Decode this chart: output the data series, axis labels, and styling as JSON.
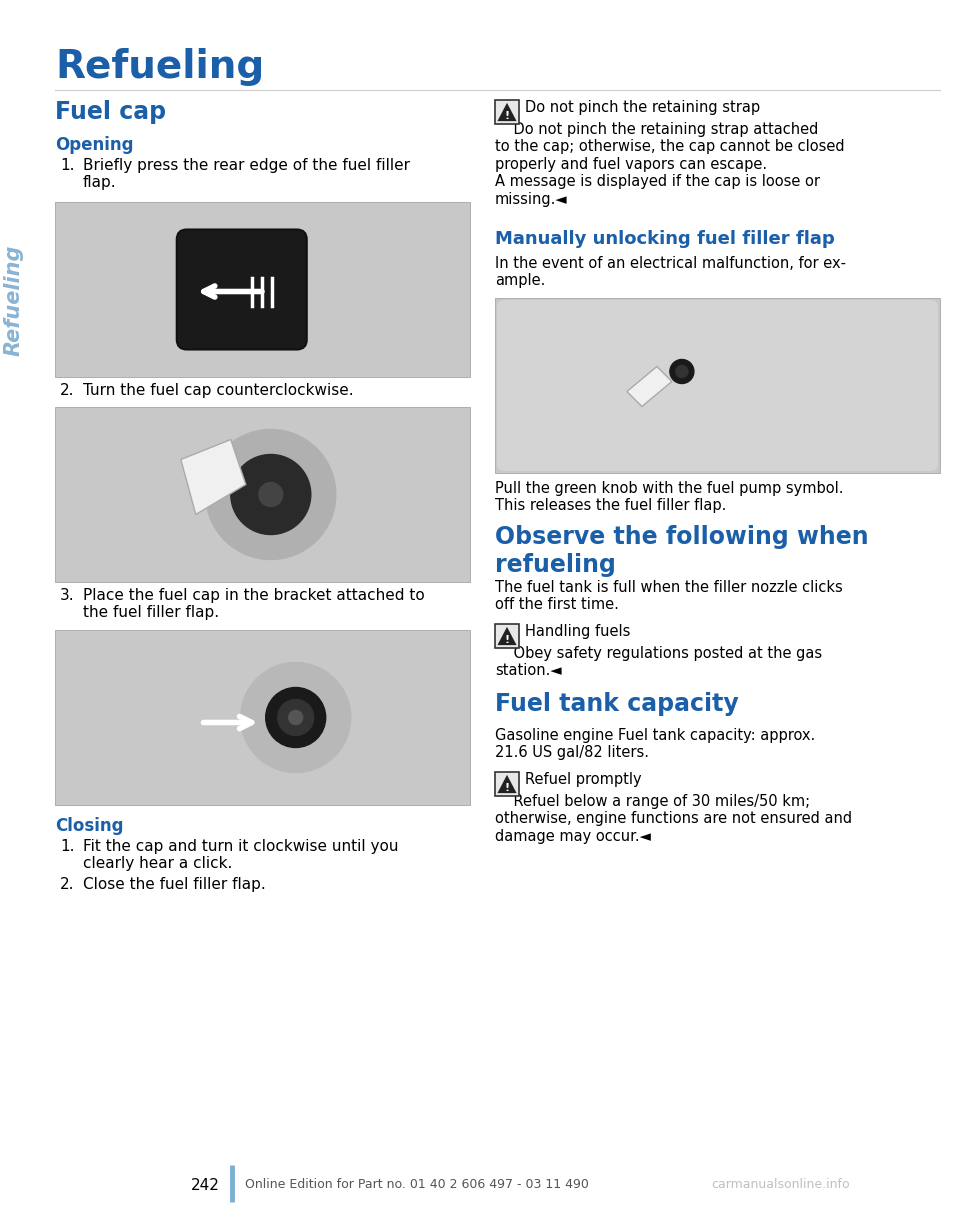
{
  "title": "Refueling",
  "title_color": "#1a5fa8",
  "sidebar_text": "Refueling",
  "sidebar_color": "#8ab4d4",
  "background_color": "#ffffff",
  "page_number": "242",
  "footer_text": "Online Edition for Part no. 01 40 2 606 497 - 03 11 490",
  "footer_watermark": "carmanualsonline.info",
  "left_column": {
    "fuel_cap_header": "Fuel cap",
    "fuel_cap_color": "#1a5fa8",
    "opening_header": "Opening",
    "opening_color": "#1a5fa8",
    "step1": "Briefly press the rear edge of the fuel filler\nflap.",
    "step2": "Turn the fuel cap counterclockwise.",
    "step3": "Place the fuel cap in the bracket attached to\nthe fuel filler flap.",
    "closing_header": "Closing",
    "closing_color": "#1a5fa8",
    "close_step1": "Fit the cap and turn it clockwise until you\nclearly hear a click.",
    "close_step2": "Close the fuel filler flap."
  },
  "right_column": {
    "warning1_text": "Do not pinch the retaining strap",
    "warning1_detail": "    Do not pinch the retaining strap attached\nto the cap; otherwise, the cap cannot be closed\nproperly and fuel vapors can escape.\nA message is displayed if the cap is loose or\nmissing.◄",
    "manual_unlock_header": "Manually unlocking fuel filler flap",
    "manual_unlock_color": "#1a5fa8",
    "manual_unlock_text": "In the event of an electrical malfunction, for ex-\nample.",
    "pull_text": "Pull the green knob with the fuel pump symbol.\nThis releases the fuel filler flap.",
    "observe_header": "Observe the following when\nrefueling",
    "observe_color": "#1a5fa8",
    "observe_text": "The fuel tank is full when the filler nozzle clicks\noff the first time.",
    "handling_warn_text": "Handling fuels",
    "handling_detail": "    Obey safety regulations posted at the gas\nstation.◄",
    "tank_header": "Fuel tank capacity",
    "tank_color": "#1a5fa8",
    "tank_text": "Gasoline engine Fuel tank capacity: approx.\n21.6 US gal/82 liters.",
    "refuel_warn_text": "Refuel promptly",
    "refuel_detail": "    Refuel below a range of 30 miles/50 km;\notherwise, engine functions are not ensured and\ndamage may occur.◄"
  },
  "image_bg_color": "#c8c8c8",
  "image_border_color": "#999999",
  "accent_blue": "#1a5fa8",
  "page_line_color": "#7bafd4",
  "warn_bg": "#e8e8e8",
  "warn_border": "#555555"
}
